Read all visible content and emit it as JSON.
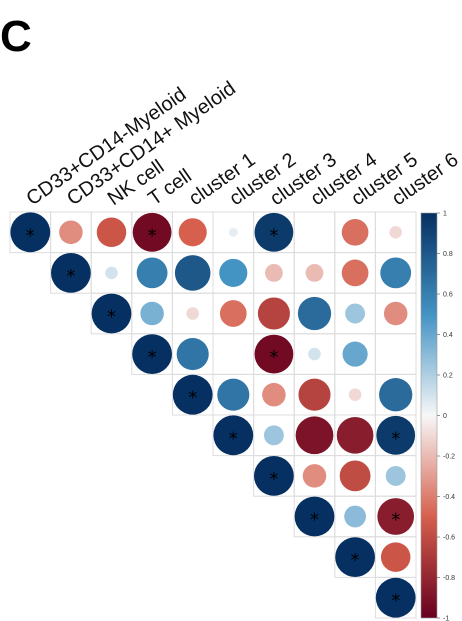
{
  "panel_label": "C",
  "chart_data": {
    "type": "heatmap",
    "variant": "correlation-circle-matrix (upper triangle)",
    "columns": [
      "CD33+CD14-Myeloid",
      "CD33+CD14+ Myeloid",
      "NK cell",
      "T cell",
      "cluster 1",
      "cluster 2",
      "cluster 3",
      "cluster 4",
      "cluster 5",
      "cluster 6"
    ],
    "row_count": 10,
    "matrix": [
      [
        1.0,
        -0.35,
        -0.55,
        -0.95,
        -0.5,
        0.05,
        0.95,
        0.0,
        -0.45,
        -0.1
      ],
      [
        null,
        1.0,
        0.1,
        0.6,
        0.8,
        0.5,
        -0.2,
        -0.2,
        -0.45,
        0.6
      ],
      [
        null,
        null,
        1.0,
        0.35,
        -0.1,
        -0.45,
        -0.65,
        0.7,
        0.25,
        -0.35
      ],
      [
        null,
        null,
        null,
        1.0,
        0.65,
        0.0,
        -0.95,
        0.1,
        0.4,
        0.0
      ],
      [
        null,
        null,
        null,
        null,
        1.0,
        0.65,
        -0.35,
        -0.65,
        -0.1,
        0.7
      ],
      [
        null,
        null,
        null,
        null,
        null,
        1.0,
        0.25,
        -0.9,
        -0.85,
        0.95
      ],
      [
        null,
        null,
        null,
        null,
        null,
        null,
        1.0,
        -0.35,
        -0.6,
        0.25
      ],
      [
        null,
        null,
        null,
        null,
        null,
        null,
        null,
        1.0,
        0.3,
        -0.85
      ],
      [
        null,
        null,
        null,
        null,
        null,
        null,
        null,
        null,
        1.0,
        -0.55
      ],
      [
        null,
        null,
        null,
        null,
        null,
        null,
        null,
        null,
        null,
        1.0
      ]
    ],
    "significant": [
      [
        0,
        0
      ],
      [
        0,
        3
      ],
      [
        0,
        6
      ],
      [
        1,
        1
      ],
      [
        2,
        2
      ],
      [
        3,
        3
      ],
      [
        3,
        6
      ],
      [
        4,
        4
      ],
      [
        5,
        5
      ],
      [
        5,
        9
      ],
      [
        6,
        6
      ],
      [
        7,
        7
      ],
      [
        7,
        9
      ],
      [
        8,
        8
      ],
      [
        9,
        9
      ]
    ],
    "significance_marker": "*",
    "colorbar": {
      "range": [
        -1,
        1
      ],
      "ticks": [
        "1",
        "0.8",
        "0.6",
        "0.4",
        "0.2",
        "0",
        "-0.2",
        "-0.4",
        "-0.6",
        "-0.8",
        "-1"
      ],
      "position": "right"
    },
    "colors": {
      "positive": "#053061",
      "positive_mid": "#4393c3",
      "neutral": "#f7f7f7",
      "negative_mid": "#d6604d",
      "negative": "#67001f"
    },
    "grid": true
  }
}
